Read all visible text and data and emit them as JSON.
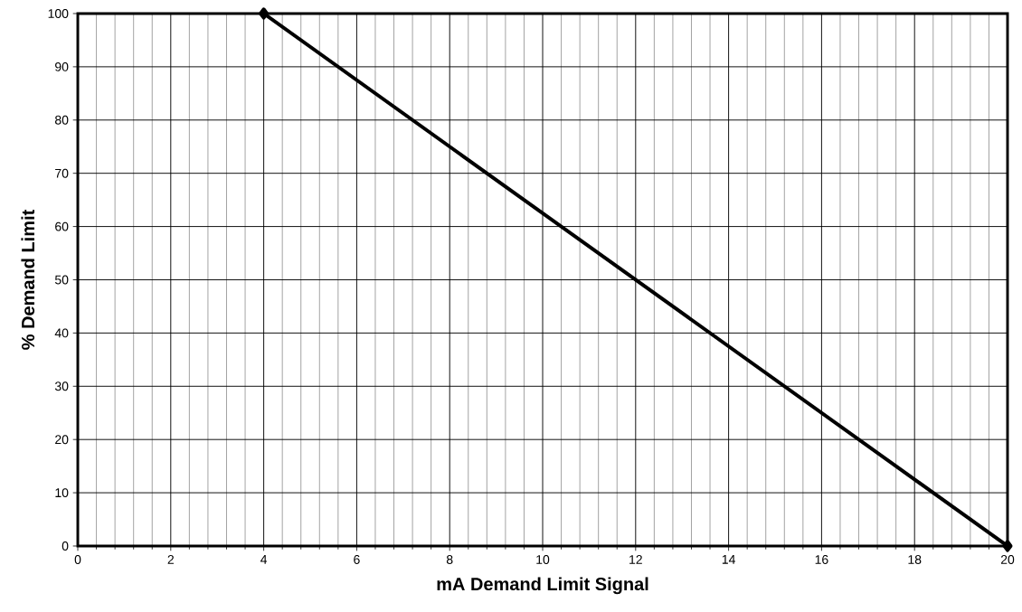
{
  "chart_data": {
    "type": "line",
    "xlabel": "mA Demand Limit Signal",
    "ylabel": "% Demand Limit",
    "x": [
      4,
      20
    ],
    "series": [
      {
        "color": "#000000",
        "values": [
          100,
          0
        ]
      }
    ],
    "xlim": [
      0,
      20
    ],
    "ylim": [
      0,
      100
    ],
    "xticks": [
      0,
      2,
      4,
      6,
      8,
      10,
      12,
      14,
      16,
      18,
      20
    ],
    "yticks": [
      0,
      10,
      20,
      30,
      40,
      50,
      60,
      70,
      80,
      90,
      100
    ],
    "grid": true,
    "marker": "diamond",
    "line_style": "solid"
  }
}
